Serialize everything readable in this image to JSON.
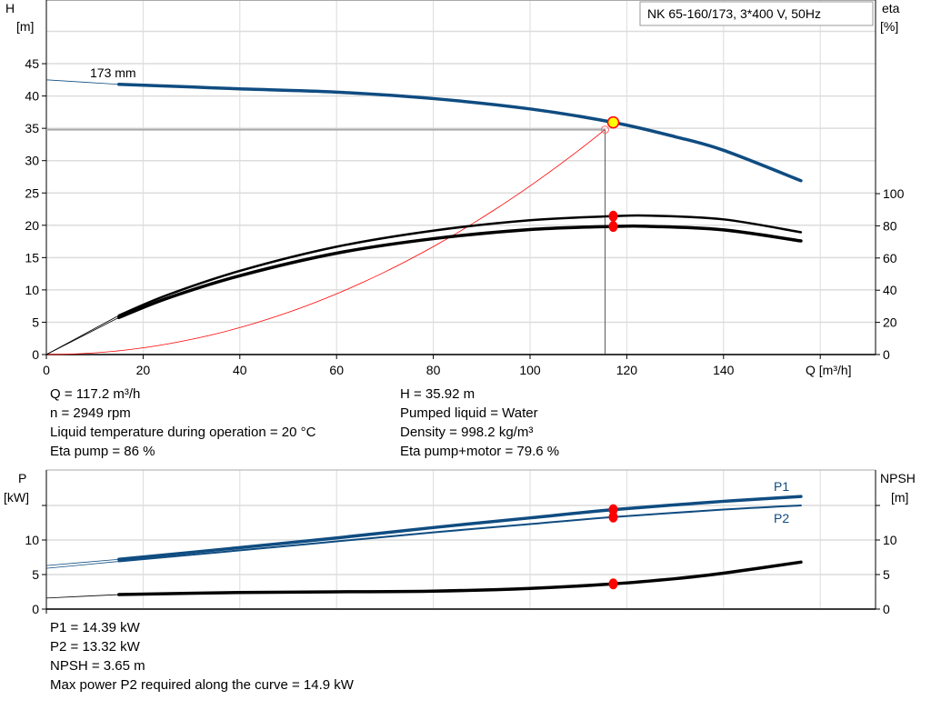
{
  "chart_data": [
    {
      "type": "line",
      "title": "NK 65-160/173, 3*400 V, 50Hz",
      "xlabel": "Q [m³/h]",
      "ylabel_left": [
        "H",
        "[m]"
      ],
      "ylabel_right": [
        "eta",
        "[%]"
      ],
      "xlim": [
        0,
        171
      ],
      "ylim_left": [
        0,
        55
      ],
      "ylim_right": [
        0,
        310
      ],
      "x_ticks": [
        0,
        20,
        40,
        60,
        80,
        100,
        120,
        140
      ],
      "y_ticks_left": [
        0,
        5,
        10,
        15,
        20,
        25,
        30,
        35,
        40,
        45
      ],
      "y_ticks_right": [
        0,
        20,
        40,
        60,
        80,
        100
      ],
      "grid": true,
      "impeller_label": "173 mm",
      "series": [
        {
          "key": "H",
          "axis": "left",
          "color": "#0f4c81",
          "x": [
            15,
            30,
            40,
            60,
            80,
            100,
            117.2,
            130,
            140,
            156
          ],
          "y": [
            41.8,
            41.4,
            41.1,
            40.6,
            39.6,
            38.0,
            35.92,
            33.7,
            31.6,
            26.9
          ],
          "extrapolated": {
            "x": [
              0,
              15
            ],
            "y": [
              42.5,
              41.8
            ]
          }
        },
        {
          "key": "eta_pump",
          "axis": "right",
          "color": "#000000",
          "x": [
            15,
            25,
            40,
            60,
            80,
            100,
            117.2,
            125,
            140,
            156
          ],
          "y": [
            24.3,
            37,
            52,
            67,
            77,
            83.5,
            86,
            86.3,
            84,
            76
          ],
          "extrapolated": {
            "x": [
              0,
              15
            ],
            "y": [
              0,
              24.3
            ]
          }
        },
        {
          "key": "eta_pump_motor",
          "axis": "right",
          "color": "#000000",
          "x": [
            15,
            25,
            40,
            60,
            80,
            100,
            117.2,
            125,
            140,
            156
          ],
          "y": [
            23,
            35,
            49,
            63,
            72,
            77.7,
            79.6,
            79.6,
            77.5,
            70.6
          ],
          "extrapolated": {
            "x": [
              0,
              15
            ],
            "y": [
              0,
              23
            ]
          }
        },
        {
          "key": "system_curve",
          "axis": "left",
          "color": "#ff0000",
          "x_range": [
            0,
            115.5
          ],
          "y_end": 34.8
        }
      ],
      "duty_point": {
        "Q": 117.2,
        "H": 35.92,
        "eta_pump": 86,
        "eta_pump_motor": 79.6,
        "requested_Q": 115.5,
        "requested_H": 34.8
      }
    },
    {
      "type": "line",
      "ylabel_left": [
        "P",
        "[kW]"
      ],
      "ylabel_right": [
        "NPSH",
        "[m]"
      ],
      "xlim": [
        0,
        171
      ],
      "ylim_left": [
        0,
        20
      ],
      "y_ticks_left": [
        0,
        5,
        10
      ],
      "y_ticks_right": [
        0,
        5,
        10
      ],
      "grid": true,
      "series": [
        {
          "key": "P1",
          "name": "P1",
          "color": "#0f4c81",
          "x": [
            15,
            40,
            60,
            80,
            100,
            117.2,
            140,
            156
          ],
          "y": [
            7.2,
            8.9,
            10.3,
            11.8,
            13.2,
            14.39,
            15.6,
            16.3
          ],
          "extrapolated": {
            "x": [
              0,
              15
            ],
            "y": [
              6.3,
              7.2
            ]
          }
        },
        {
          "key": "P2",
          "name": "P2",
          "color": "#0f4c81",
          "x": [
            15,
            40,
            60,
            80,
            100,
            117.2,
            140,
            156
          ],
          "y": [
            6.9,
            8.5,
            9.8,
            11.1,
            12.3,
            13.32,
            14.4,
            15.0
          ],
          "extrapolated": {
            "x": [
              0,
              15
            ],
            "y": [
              5.9,
              6.9
            ]
          }
        },
        {
          "key": "NPSH",
          "color": "#000000",
          "x": [
            15,
            40,
            60,
            80,
            100,
            117.2,
            130,
            140,
            156
          ],
          "y": [
            2.1,
            2.4,
            2.5,
            2.6,
            3.0,
            3.65,
            4.4,
            5.2,
            6.8
          ],
          "extrapolated": {
            "x": [
              0,
              15
            ],
            "y": [
              1.6,
              2.1
            ]
          }
        }
      ],
      "duty_point": {
        "Q": 117.2,
        "P1": 14.39,
        "P2": 13.32,
        "NPSH": 3.65
      }
    }
  ],
  "info_top": {
    "left": [
      "Q = 117.2 m³/h",
      "n = 2949 rpm",
      "Liquid temperature during operation = 20 °C",
      "Eta pump = 86 %"
    ],
    "right": [
      "H = 35.92 m",
      "Pumped liquid = Water",
      "Density = 998.2 kg/m³",
      "Eta pump+motor = 79.6 %"
    ]
  },
  "info_bottom": [
    "P1 = 14.39 kW",
    "P2 = 13.32 kW",
    "NPSH = 3.65 m",
    "Max power P2 required along the curve = 14.9 kW"
  ],
  "colors": {
    "pump_curve": "#0f4c81",
    "duty_point_fill": "#ffff00",
    "marker": "#ff0000",
    "grid": "#d9d9d9"
  }
}
